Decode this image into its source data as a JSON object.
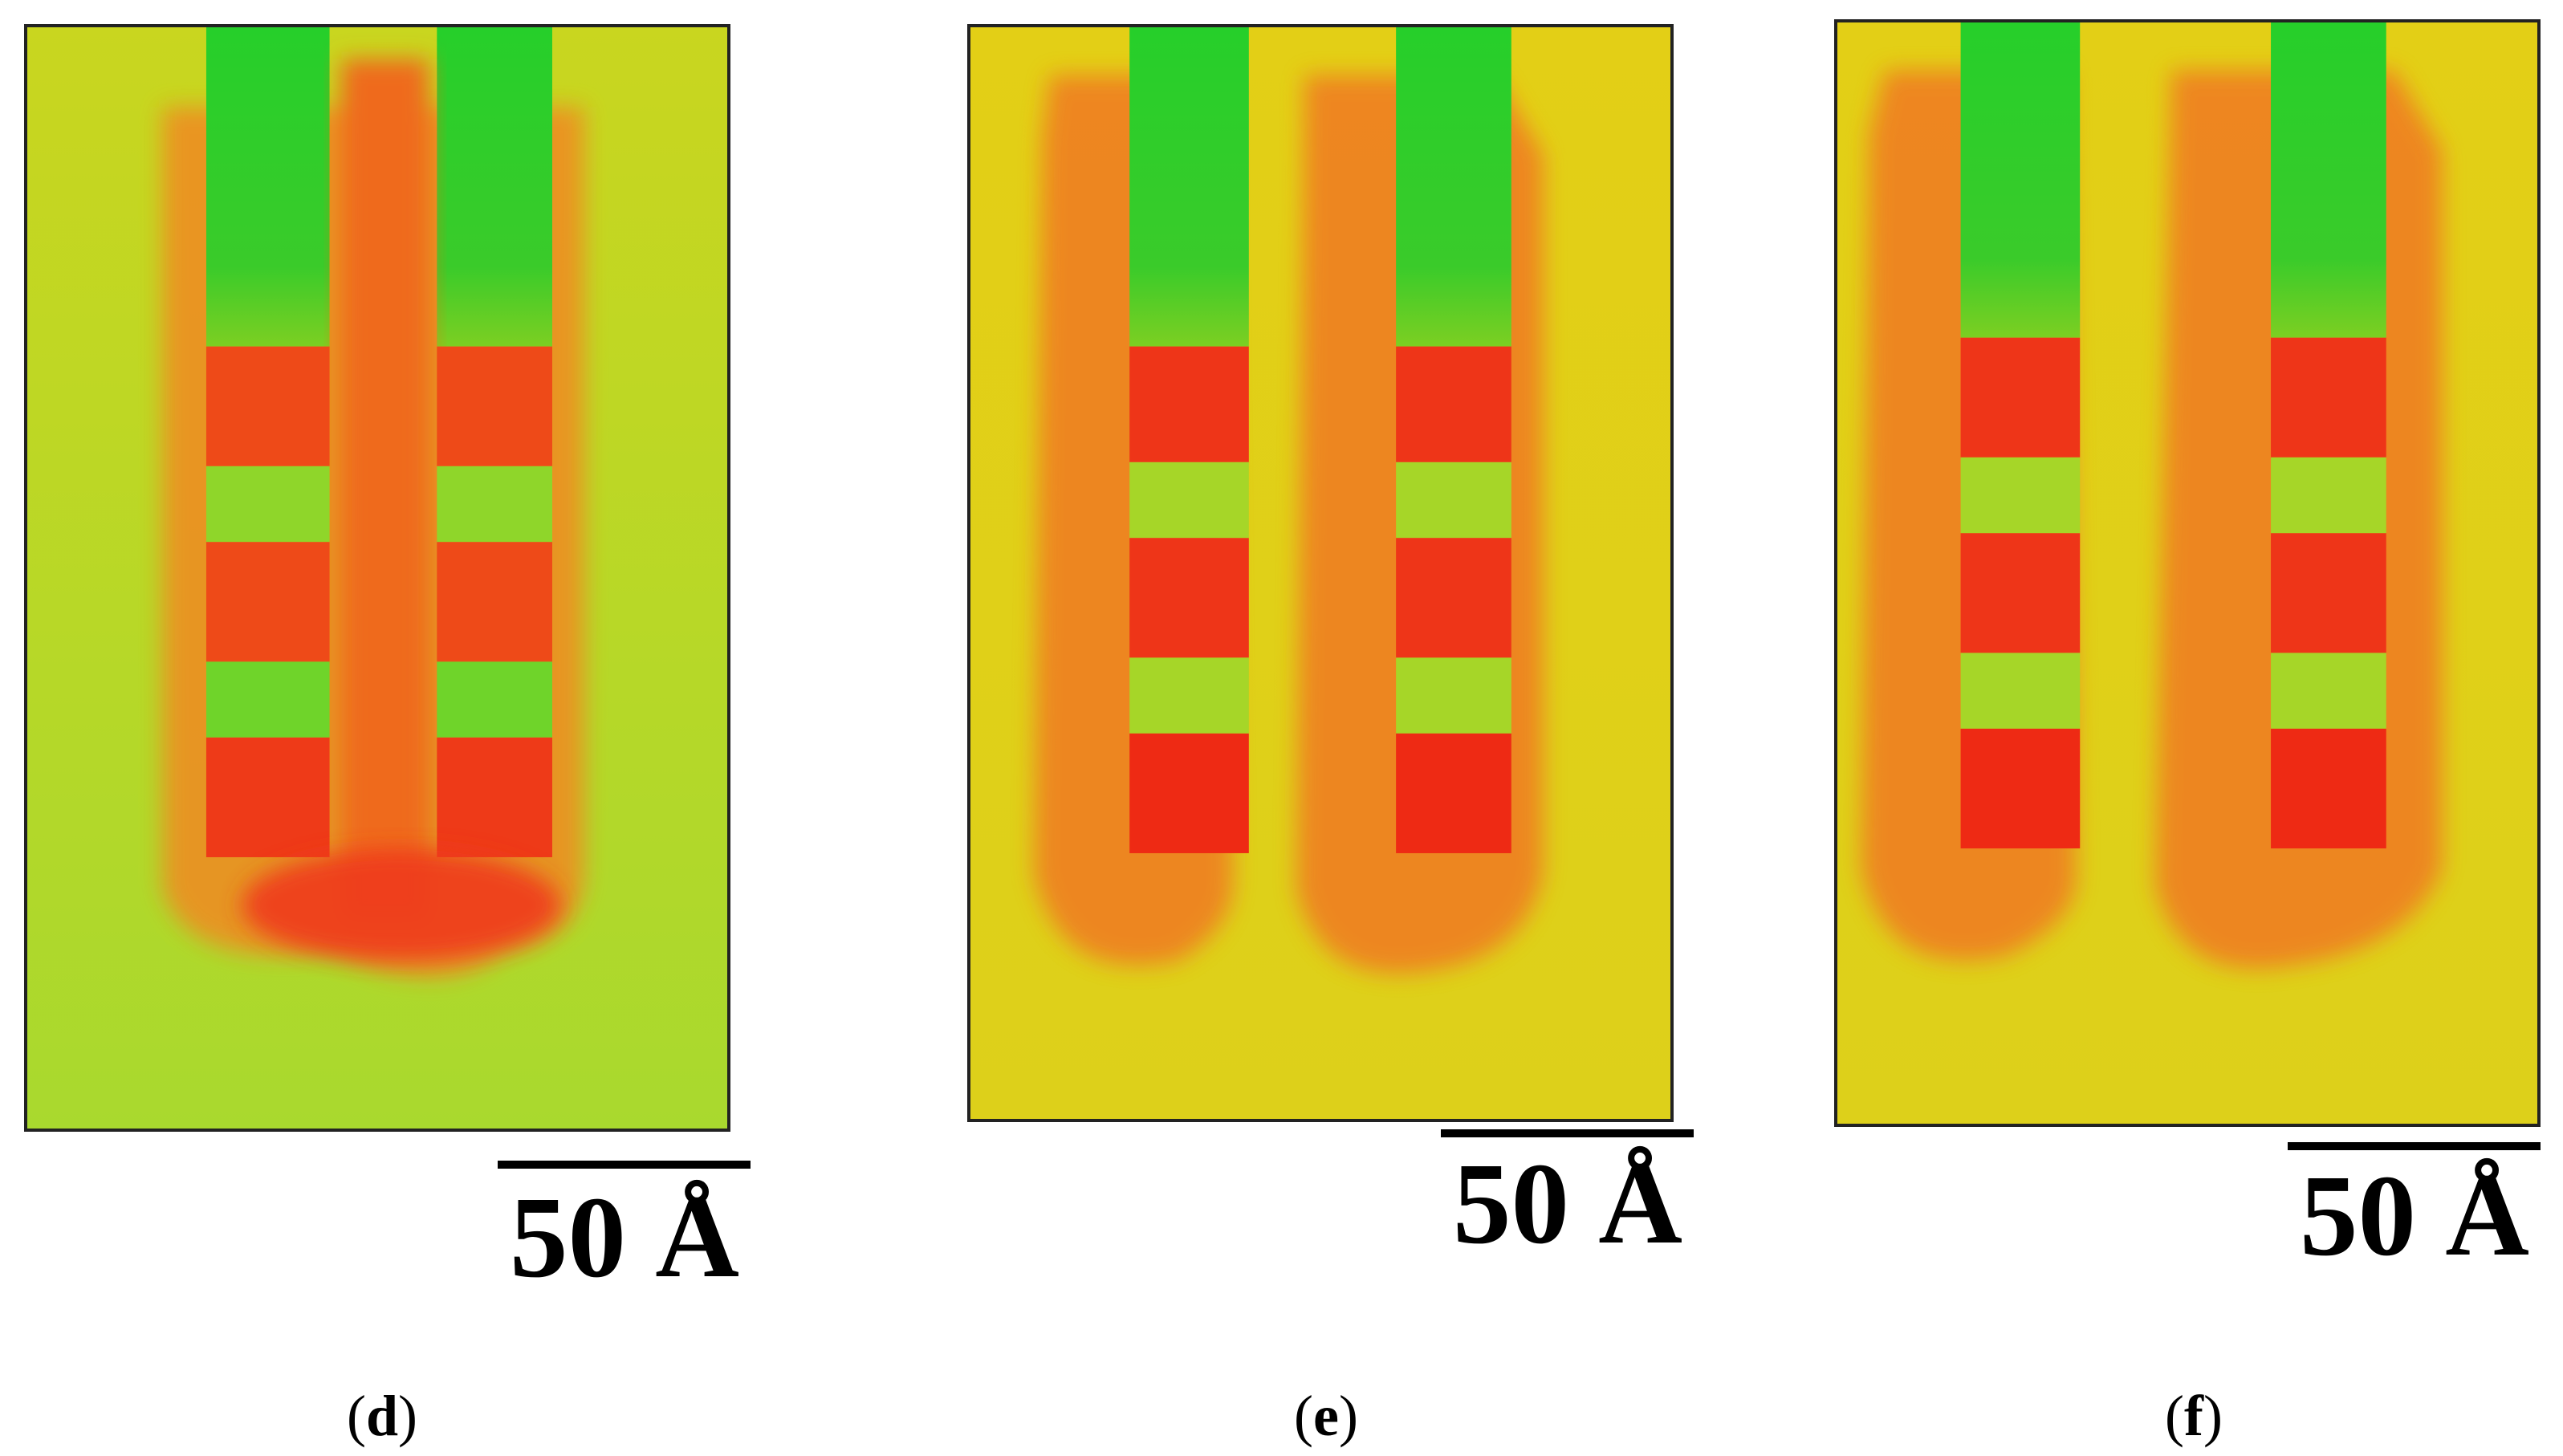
{
  "panels": [
    {
      "id": "d",
      "caption_letter": "d",
      "scale_label": "50 Å"
    },
    {
      "id": "e",
      "caption_letter": "e",
      "scale_label": "50 Å"
    },
    {
      "id": "f",
      "caption_letter": "f",
      "scale_label": "50 Å"
    }
  ],
  "colors": {
    "substrate_yellow": "#d9d21a",
    "substrate_yellow_green": "#b6d928",
    "green_layer": "#2fcf2f",
    "light_green_layer": "#9ad62a",
    "red_layer": "#ee3a18",
    "deformation_orange": "#f07a22",
    "frame": "#222222"
  }
}
